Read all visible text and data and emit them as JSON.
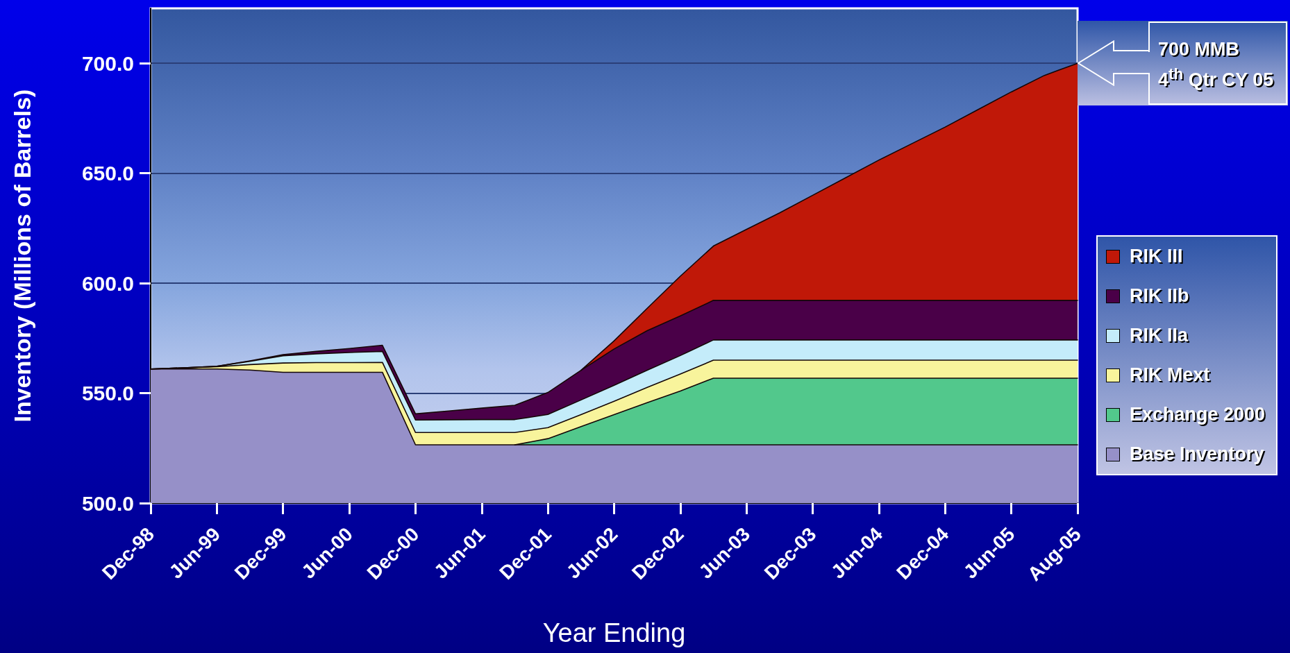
{
  "chart_data": {
    "type": "area",
    "xlabel": "Year Ending",
    "ylabel": "Inventory (Millions of Barrels)",
    "categories": [
      "Dec-98",
      null,
      "Jun-99",
      null,
      "Dec-99",
      null,
      "Jun-00",
      null,
      "Dec-00",
      null,
      "Jun-01",
      null,
      "Dec-01",
      null,
      "Jun-02",
      null,
      "Dec-02",
      null,
      "Jun-03",
      null,
      "Dec-03",
      null,
      "Jun-04",
      null,
      "Dec-04",
      null,
      "Jun-05",
      null,
      "Aug-05"
    ],
    "series": [
      {
        "name": "RIK III",
        "color": "#c01808",
        "values": [
          null,
          null,
          null,
          null,
          null,
          null,
          null,
          null,
          null,
          null,
          null,
          null,
          null,
          560.4,
          573.8,
          588.6,
          603.2,
          616.9,
          624.5,
          632,
          640,
          648,
          656,
          663.5,
          671,
          679,
          687,
          694.5,
          700
        ]
      },
      {
        "name": "RIK IIb",
        "color": "#4a0048",
        "values": [
          561,
          561.5,
          562.2,
          564.7,
          567.5,
          569,
          570.3,
          571.8,
          540.6,
          541.9,
          543.2,
          544.5,
          550.3,
          560.4,
          570.1,
          578.4,
          585.1,
          592.2,
          592.2,
          592.2,
          592.2,
          592.2,
          592.2,
          592.2,
          592.2,
          592.2,
          592.2,
          592.2,
          592.2
        ]
      },
      {
        "name": "RIK IIa",
        "color": "#c4ecfa",
        "values": [
          561,
          561.5,
          562.2,
          564.5,
          567,
          567.9,
          568.5,
          569,
          537.8,
          537.9,
          538,
          538,
          540.3,
          546.9,
          553.6,
          560.4,
          567.1,
          574.2,
          574.2,
          574.2,
          574.2,
          574.2,
          574.2,
          574.2,
          574.2,
          574.2,
          574.2,
          574.2,
          574.2
        ]
      },
      {
        "name": "RIK Mext",
        "color": "#f8f49c",
        "values": [
          561,
          561.5,
          562,
          563,
          563.7,
          563.9,
          563.9,
          564,
          532.1,
          532.1,
          532.1,
          532.1,
          534.3,
          540.2,
          546.3,
          552.6,
          558.7,
          565,
          565,
          565,
          565,
          565,
          565,
          565,
          565,
          565,
          565,
          565,
          565
        ]
      },
      {
        "name": "Exchange 2000",
        "color": "#52c88c",
        "values": [
          null,
          null,
          null,
          null,
          null,
          null,
          null,
          null,
          null,
          null,
          null,
          526.5,
          529.3,
          534.8,
          540.2,
          545.7,
          551,
          556.8,
          556.8,
          556.8,
          556.8,
          556.8,
          556.8,
          556.8,
          556.8,
          556.8,
          556.8,
          556.8,
          556.8
        ]
      },
      {
        "name": "Base Inventory",
        "color": "#9690c8",
        "values": [
          561,
          561,
          561,
          560.5,
          559.5,
          559.5,
          559.5,
          559.5,
          526.5,
          526.5,
          526.5,
          526.5,
          526.5,
          526.5,
          526.5,
          526.5,
          526.5,
          526.5,
          526.5,
          526.5,
          526.5,
          526.5,
          526.5,
          526.5,
          526.5,
          526.5,
          526.5,
          526.5,
          526.5
        ]
      }
    ],
    "ylim": [
      500,
      725
    ],
    "yticks": [
      {
        "value": 500,
        "label": "500.0"
      },
      {
        "value": 550,
        "label": "550.0"
      },
      {
        "value": 600,
        "label": "600.0"
      },
      {
        "value": 650,
        "label": "650.0"
      },
      {
        "value": 700,
        "label": "700.0"
      }
    ],
    "grid": "y",
    "legend": "right",
    "annotations": [
      "700 MMB\n4$^{th}$ Qtr CY 05"
    ]
  }
}
